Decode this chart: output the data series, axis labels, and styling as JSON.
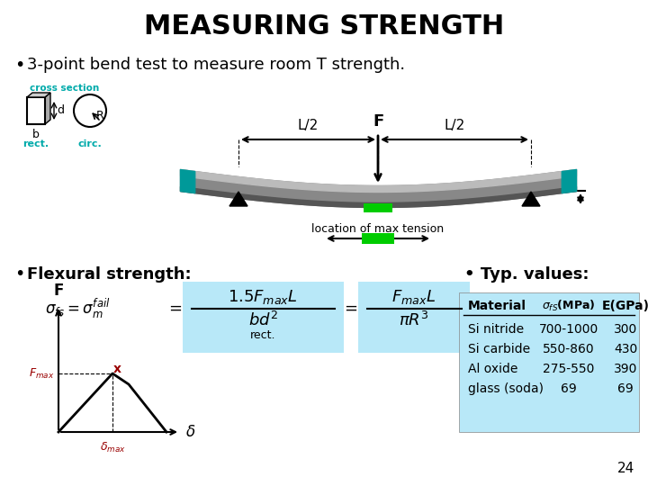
{
  "title": "MEASURING STRENGTH",
  "bullet1": "3-point bend test to measure room T strength.",
  "bullet2_label": "Flexural strength:",
  "typ_values_label": "Typ. values:",
  "table_header": [
    "Material",
    "σₜS(MPa)",
    "E(GPa)"
  ],
  "table_rows": [
    [
      "Si nitride",
      "700-1000",
      "300"
    ],
    [
      "Si carbide",
      "550-860",
      "430"
    ],
    [
      "Al oxide",
      "275-550",
      "390"
    ],
    [
      "glass (soda)",
      "69",
      "69"
    ]
  ],
  "page_number": "24",
  "bg_color": "#ffffff",
  "title_color": "#000000",
  "cyan_color": "#00aaaa",
  "red_color": "#990000",
  "green_color": "#00cc00",
  "table_bg": "#b8e8f8",
  "formula_bg": "#b8e8f8"
}
